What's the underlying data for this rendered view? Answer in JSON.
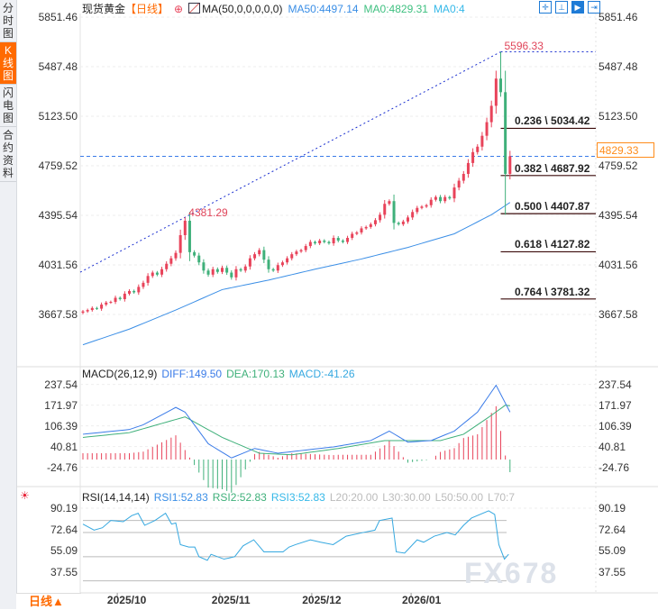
{
  "sidebar": {
    "tabs": [
      {
        "label": [
          "分",
          "时",
          "图"
        ],
        "active": false
      },
      {
        "label": [
          "K",
          "线",
          "图"
        ],
        "active": true
      },
      {
        "label": [
          "闪",
          "电",
          "图"
        ],
        "active": false
      },
      {
        "label": [
          "合",
          "约",
          "资",
          "料"
        ],
        "active": false
      }
    ],
    "period": "日线▲"
  },
  "header": {
    "symbol": "现货黄金",
    "period": "【日线】",
    "indicator": "MA(50,0,0,0,0,0)",
    "ma50": "MA50:4497.14",
    "ma0a": "MA0:4829.31",
    "ma0b": "MA0:4",
    "tools": [
      "crosshair-icon",
      "range-icon",
      "play-icon",
      "end-icon"
    ]
  },
  "colors": {
    "up": "#e8435a",
    "down": "#3fb07a",
    "ma50": "#3a8ee6",
    "diff": "#3a7be8",
    "dea": "#3fb07a",
    "rsi": "#35a8e0",
    "accent": "#ff6a00"
  },
  "main": {
    "y_labels": [
      "5851.46",
      "5487.48",
      "5123.50",
      "4759.52",
      "4395.54",
      "4031.56",
      "3667.58"
    ],
    "y_values": [
      5851.46,
      5487.48,
      5123.5,
      4759.52,
      4395.54,
      4031.56,
      3667.58
    ],
    "current_price": "4829.33",
    "current_value": 4829.33,
    "high_label": "5596.33",
    "high_value": 5596.33,
    "high_index": 90,
    "swing_label": "4381.29",
    "swing_value": 4381.29,
    "swing_index": 22,
    "crash_low": 4400,
    "closes": [
      3690,
      3700,
      3715,
      3710,
      3740,
      3755,
      3760,
      3790,
      3780,
      3820,
      3840,
      3830,
      3870,
      3900,
      3950,
      3975,
      3960,
      4000,
      4040,
      4080,
      4120,
      4250,
      4356,
      4125,
      4100,
      4050,
      3990,
      3960,
      4000,
      3980,
      4010,
      3975,
      3940,
      4000,
      3990,
      4020,
      4080,
      4110,
      4140,
      4070,
      4000,
      3990,
      4030,
      4050,
      4080,
      4110,
      4130,
      4140,
      4170,
      4200,
      4190,
      4210,
      4200,
      4190,
      4230,
      4210,
      4200,
      4230,
      4260,
      4270,
      4300,
      4310,
      4330,
      4360,
      4400,
      4480,
      4500,
      4340,
      4330,
      4350,
      4380,
      4420,
      4450,
      4460,
      4470,
      4510,
      4530,
      4500,
      4530,
      4520,
      4600,
      4650,
      4700,
      4780,
      4860,
      4900,
      4980,
      5080,
      5200,
      5400,
      5300,
      4700,
      4829.33
    ],
    "ma50_points": [
      [
        0,
        3445
      ],
      [
        10,
        3560
      ],
      [
        20,
        3700
      ],
      [
        30,
        3850
      ],
      [
        40,
        3920
      ],
      [
        50,
        4000
      ],
      [
        60,
        4075
      ],
      [
        70,
        4160
      ],
      [
        80,
        4260
      ],
      [
        88,
        4400
      ],
      [
        92,
        4490
      ]
    ],
    "fib": [
      {
        "label": "0.236 \\ 5034.42",
        "value": 5034.42
      },
      {
        "label": "0.382 \\ 4687.92",
        "value": 4687.92
      },
      {
        "label": "0.500 \\ 4407.87",
        "value": 4407.87
      },
      {
        "label": "0.618 \\ 4127.82",
        "value": 4127.82
      },
      {
        "label": "0.764 \\ 3781.32",
        "value": 3781.32
      }
    ]
  },
  "macd": {
    "title": "MACD(26,12,9)",
    "diff": "DIFF:149.50",
    "dea": "DEA:170.13",
    "macd": "MACD:-41.26",
    "y_labels": [
      "237.54",
      "171.97",
      "106.39",
      "40.81",
      "-24.76"
    ],
    "y_values": [
      237.54,
      171.97,
      106.39,
      40.81,
      -24.76
    ],
    "diff_points": [
      [
        0,
        80
      ],
      [
        10,
        95
      ],
      [
        13,
        110
      ],
      [
        20,
        165
      ],
      [
        22,
        150
      ],
      [
        27,
        50
      ],
      [
        32,
        5
      ],
      [
        37,
        35
      ],
      [
        42,
        20
      ],
      [
        48,
        30
      ],
      [
        54,
        40
      ],
      [
        62,
        60
      ],
      [
        66,
        90
      ],
      [
        70,
        55
      ],
      [
        75,
        60
      ],
      [
        80,
        90
      ],
      [
        85,
        150
      ],
      [
        89,
        235
      ],
      [
        92,
        150
      ]
    ],
    "dea_points": [
      [
        0,
        70
      ],
      [
        10,
        85
      ],
      [
        22,
        135
      ],
      [
        30,
        70
      ],
      [
        38,
        20
      ],
      [
        45,
        15
      ],
      [
        55,
        35
      ],
      [
        65,
        60
      ],
      [
        72,
        60
      ],
      [
        77,
        60
      ],
      [
        82,
        80
      ],
      [
        88,
        140
      ],
      [
        91,
        172
      ],
      [
        92,
        170
      ]
    ]
  },
  "rsi": {
    "title": "RSI(14,14,14)",
    "rsi1": "RSI1:52.83",
    "rsi2": "RSI2:52.83",
    "rsi3": "RSI3:52.83",
    "l20": "L20:20.00",
    "l30": "L30:30.00",
    "l50": "L50:50.00",
    "l70": "L70:7",
    "y_labels": [
      "90.19",
      "72.64",
      "55.09",
      "37.55"
    ],
    "y_values": [
      90.19,
      72.64,
      55.09,
      37.55
    ],
    "levels": [
      80,
      70,
      50,
      30,
      20
    ],
    "points": [
      [
        0,
        77
      ],
      [
        2.4,
        72
      ],
      [
        4.2,
        74
      ],
      [
        6,
        80
      ],
      [
        8.7,
        79
      ],
      [
        10.5,
        84
      ],
      [
        11.9,
        86
      ],
      [
        13.3,
        76
      ],
      [
        15.5,
        80
      ],
      [
        17.8,
        86
      ],
      [
        19.1,
        77
      ],
      [
        20,
        78
      ],
      [
        21,
        60
      ],
      [
        22.8,
        58
      ],
      [
        24.1,
        58
      ],
      [
        25,
        50
      ],
      [
        26.8,
        47
      ],
      [
        27.6,
        52
      ],
      [
        30.4,
        48
      ],
      [
        32.7,
        50
      ],
      [
        34.5,
        59
      ],
      [
        36.8,
        64
      ],
      [
        39,
        54
      ],
      [
        41.3,
        54
      ],
      [
        43.1,
        54
      ],
      [
        44.4,
        58
      ],
      [
        45.8,
        60
      ],
      [
        49,
        64
      ],
      [
        51.2,
        62
      ],
      [
        53.9,
        60
      ],
      [
        56.7,
        67
      ],
      [
        60.3,
        70
      ],
      [
        62.9,
        72
      ],
      [
        63.9,
        80
      ],
      [
        66.6,
        82
      ],
      [
        67.5,
        54
      ],
      [
        69.3,
        53
      ],
      [
        72,
        64
      ],
      [
        73.4,
        62
      ],
      [
        75.7,
        67
      ],
      [
        78.4,
        70
      ],
      [
        80.2,
        68
      ],
      [
        82,
        76
      ],
      [
        83.7,
        82
      ],
      [
        87.4,
        88
      ],
      [
        88.7,
        85
      ],
      [
        89.6,
        60
      ],
      [
        90.8,
        48
      ],
      [
        91.7,
        52
      ]
    ]
  },
  "x_axis": {
    "labels": [
      {
        "text": "2025/10",
        "index": 9.5
      },
      {
        "text": "2025/11",
        "index": 32
      },
      {
        "text": "2025/12",
        "index": 51.5
      },
      {
        "text": "2026/01",
        "index": 73
      }
    ],
    "ticks": [
      7.4,
      29.5,
      49.3,
      70.7
    ]
  },
  "watermark": "FX678"
}
